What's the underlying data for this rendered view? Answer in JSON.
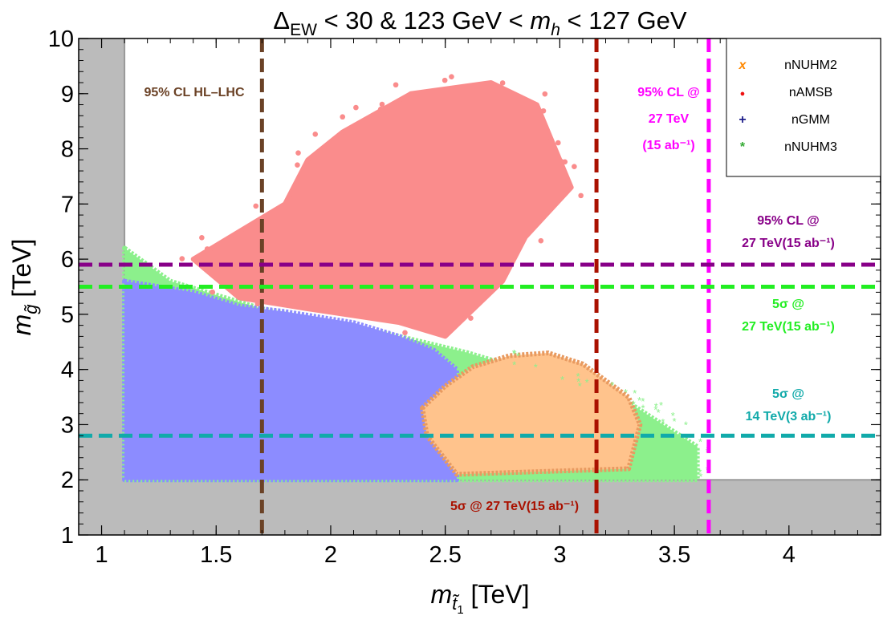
{
  "chart_data": {
    "type": "scatter",
    "title": "Δ_EW < 30   &   123 GeV < m_h < 127 GeV",
    "title_parts": {
      "delta": "Δ",
      "ew": "EW",
      "lt30": " < 30   &   123 GeV < ",
      "m": "m",
      "h": "h",
      "tail": " < 127 GeV"
    },
    "xlabel": "m_t̃1 [TeV]",
    "xlabel_parts": {
      "m": "m",
      "sub": "t̃",
      "subsub": "1",
      "unit": " [TeV]"
    },
    "ylabel": "m_g̃ [TeV]",
    "ylabel_parts": {
      "m": "m",
      "sub": "g̃",
      "unit": " [TeV]"
    },
    "xlim": [
      0.9,
      4.4
    ],
    "ylim": [
      1,
      10
    ],
    "xticks": [
      1,
      1.5,
      2,
      2.5,
      3,
      3.5,
      4
    ],
    "xtick_labels": [
      "1",
      "1.5",
      "2",
      "2.5",
      "3",
      "3.5",
      "4"
    ],
    "yticks": [
      1,
      2,
      3,
      4,
      5,
      6,
      7,
      8,
      9,
      10
    ],
    "ytick_labels": [
      "1",
      "2",
      "3",
      "4",
      "5",
      "6",
      "7",
      "8",
      "9",
      "10"
    ],
    "excluded_region": {
      "x_max": 1.1,
      "y_max": 2.0,
      "color": "#bbbbbb"
    },
    "series": [
      {
        "name": "nNUHM3",
        "marker": "*",
        "color": "#8cf08c",
        "region": [
          [
            1.1,
            6.2
          ],
          [
            1.3,
            5.6
          ],
          [
            1.7,
            5.1
          ],
          [
            2.3,
            4.6
          ],
          [
            2.6,
            4.3
          ],
          [
            3.0,
            3.8
          ],
          [
            3.3,
            3.4
          ],
          [
            3.6,
            2.6
          ],
          [
            3.6,
            2.0
          ],
          [
            1.1,
            2.0
          ]
        ],
        "sparse_range": {
          "x": [
            2.8,
            3.65
          ],
          "y": [
            2.0,
            4.5
          ]
        }
      },
      {
        "name": "nGMM",
        "marker": "+",
        "color": "#8c8cff",
        "region": [
          [
            1.1,
            5.6
          ],
          [
            1.4,
            5.4
          ],
          [
            1.6,
            5.15
          ],
          [
            1.8,
            5.05
          ],
          [
            2.1,
            4.85
          ],
          [
            2.3,
            4.6
          ],
          [
            2.45,
            4.35
          ],
          [
            2.55,
            4.0
          ],
          [
            2.55,
            2.0
          ],
          [
            1.1,
            2.0
          ]
        ]
      },
      {
        "name": "nNUHM2",
        "marker": "x",
        "color": "#ffc38c",
        "region": [
          [
            2.4,
            3.3
          ],
          [
            2.5,
            3.7
          ],
          [
            2.62,
            4.05
          ],
          [
            2.78,
            4.25
          ],
          [
            2.95,
            4.3
          ],
          [
            3.1,
            4.1
          ],
          [
            3.3,
            3.5
          ],
          [
            3.35,
            3.0
          ],
          [
            3.3,
            2.2
          ],
          [
            2.55,
            2.1
          ],
          [
            2.42,
            2.8
          ]
        ],
        "outline_color": "#e89a60"
      },
      {
        "name": "nAMSB",
        "marker": "●",
        "color": "#fa8c8c",
        "region": [
          [
            1.4,
            6.0
          ],
          [
            1.6,
            6.5
          ],
          [
            1.8,
            7.0
          ],
          [
            1.9,
            7.8
          ],
          [
            2.05,
            8.3
          ],
          [
            2.35,
            9.0
          ],
          [
            2.7,
            9.2
          ],
          [
            2.9,
            8.8
          ],
          [
            3.05,
            7.3
          ],
          [
            2.85,
            6.4
          ],
          [
            2.75,
            5.6
          ],
          [
            2.6,
            5.0
          ],
          [
            2.5,
            4.6
          ],
          [
            2.3,
            4.85
          ],
          [
            1.9,
            5.1
          ],
          [
            1.6,
            5.3
          ]
        ],
        "sparse_range": {
          "x": [
            1.15,
            3.1
          ],
          "y": [
            4.5,
            9.4
          ]
        }
      }
    ],
    "limits": [
      {
        "orientation": "vertical",
        "x": 1.7,
        "color": "#6b4226",
        "label": "95% CL HL–LHC"
      },
      {
        "orientation": "vertical",
        "x": 3.16,
        "color": "#aa1100",
        "label": "5σ @ 27 TeV(15 ab⁻¹)"
      },
      {
        "orientation": "vertical",
        "x": 3.65,
        "color": "#ff00ff",
        "label_lines": [
          "95% CL @",
          "27 TeV",
          "(15 ab⁻¹)"
        ]
      },
      {
        "orientation": "horizontal",
        "y": 5.9,
        "color": "#880088",
        "label_lines": [
          "95% CL @",
          "27 TeV(15 ab⁻¹)"
        ]
      },
      {
        "orientation": "horizontal",
        "y": 5.5,
        "color": "#22ee22",
        "label_lines": [
          "5σ @",
          "27 TeV(15 ab⁻¹)"
        ]
      },
      {
        "orientation": "horizontal",
        "y": 2.8,
        "color": "#11aaaa",
        "label_lines": [
          "5σ @",
          "14 TeV(3 ab⁻¹)"
        ]
      }
    ],
    "legend": {
      "position": "top-right",
      "entries": [
        {
          "marker": "x",
          "color": "#ff8800",
          "label": "nNUHM2"
        },
        {
          "marker": "●",
          "color": "#ee1111",
          "label": "nAMSB"
        },
        {
          "marker": "+",
          "color": "#1a1a88",
          "label": "nGMM"
        },
        {
          "marker": "*",
          "color": "#33aa33",
          "label": "nNUHM3"
        }
      ]
    }
  }
}
